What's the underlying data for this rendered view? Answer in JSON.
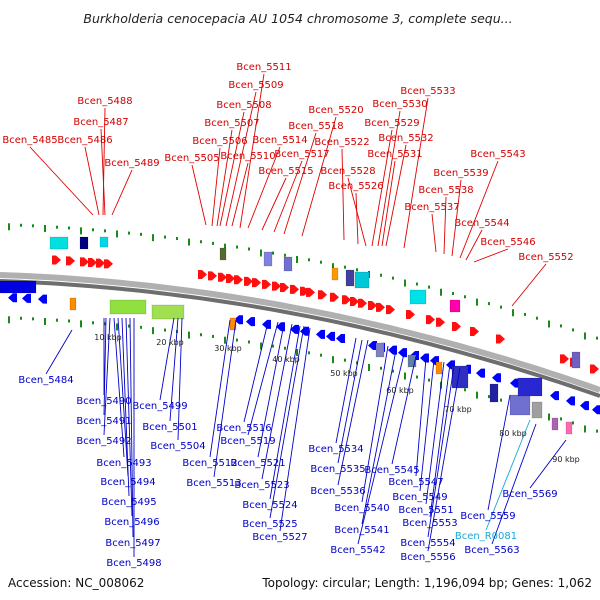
{
  "title": "Burkholderia cenocepacia AU 1054 chromosome 3, complete sequ...",
  "footer": {
    "accession": "Accession: NC_008062",
    "summary": "Topology: circular; Length: 1,196,094 bp; Genes: 1,062"
  },
  "scale_ticks": [
    "10 kbp",
    "20 kbp",
    "30 kbp",
    "40 kbp",
    "50 kbp",
    "60 kbp",
    "70 kbp",
    "80 kbp",
    "90 kbp"
  ],
  "colors": {
    "forward_gene": "#ff0000",
    "reverse_gene": "#0000ff",
    "rna_label": "#18a8d8",
    "tick_green": "#1a7a1a",
    "backbone": "#888888"
  },
  "labels_top": [
    "Bcen_5485",
    "Bcen_5486",
    "Bcen_5487",
    "Bcen_5488",
    "Bcen_5489",
    "Bcen_5505",
    "Bcen_5506",
    "Bcen_5507",
    "Bcen_5508",
    "Bcen_5509",
    "Bcen_5510",
    "Bcen_5511",
    "Bcen_5514",
    "Bcen_5515",
    "Bcen_5517",
    "Bcen_5518",
    "Bcen_5520",
    "Bcen_5522",
    "Bcen_5526",
    "Bcen_5528",
    "Bcen_5529",
    "Bcen_5530",
    "Bcen_5531",
    "Bcen_5532",
    "Bcen_5533",
    "Bcen_5537",
    "Bcen_5538",
    "Bcen_5539",
    "Bcen_5543",
    "Bcen_5544",
    "Bcen_5546",
    "Bcen_5552"
  ],
  "labels_bottom": [
    "Bcen_5484",
    "Bcen_5490",
    "Bcen_5491",
    "Bcen_5492",
    "Bcen_5493",
    "Bcen_5494",
    "Bcen_5495",
    "Bcen_5496",
    "Bcen_5497",
    "Bcen_5498",
    "Bcen_5499",
    "Bcen_5501",
    "Bcen_5504",
    "Bcen_5512",
    "Bcen_5513",
    "Bcen_5516",
    "Bcen_5519",
    "Bcen_5521",
    "Bcen_5523",
    "Bcen_5524",
    "Bcen_5525",
    "Bcen_5527",
    "Bcen_5534",
    "Bcen_5535",
    "Bcen_5536",
    "Bcen_5540",
    "Bcen_5541",
    "Bcen_5542",
    "Bcen_5545",
    "Bcen_5547",
    "Bcen_5549",
    "Bcen_5551",
    "Bcen_5553",
    "Bcen_5554",
    "Bcen_5556",
    "Bcen_5559",
    "Bcen_R0081",
    "Bcen_5563",
    "Bcen_5569"
  ]
}
